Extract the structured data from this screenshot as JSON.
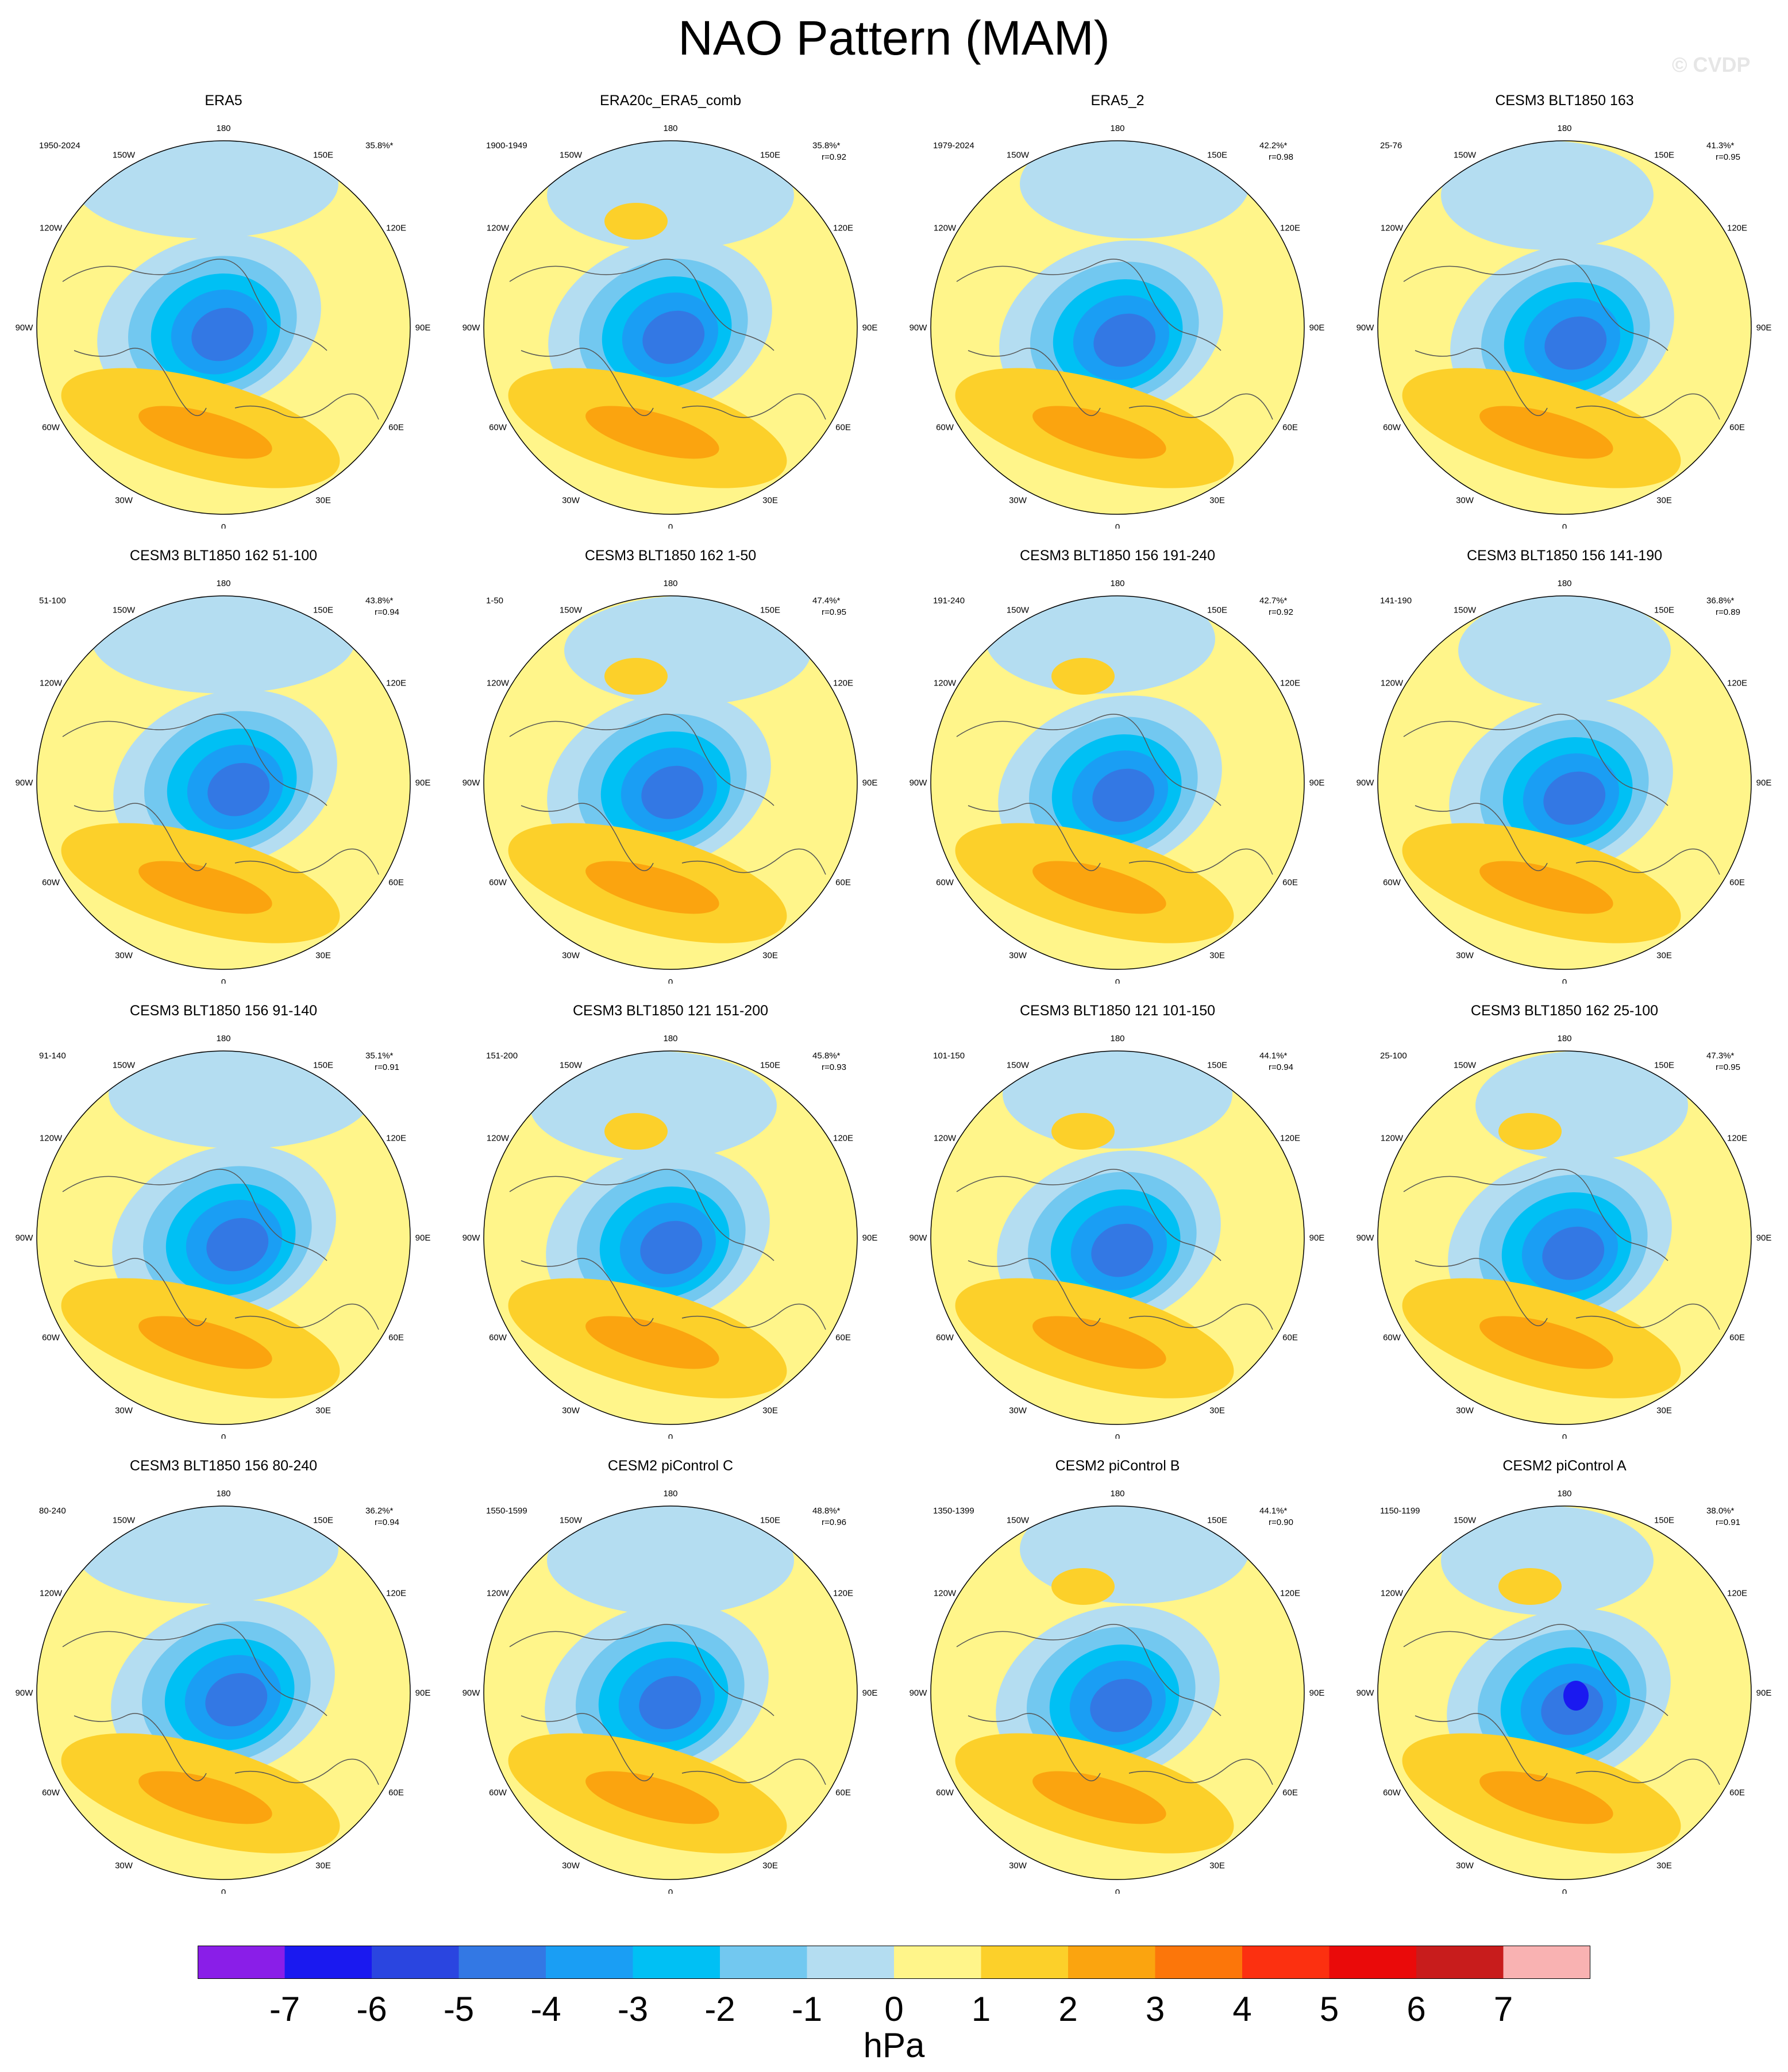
{
  "title": "NAO Pattern (MAM)",
  "watermark": "© CVDP",
  "chart_data": {
    "type": "polar-map-grid",
    "projection": "north-polar-stereographic",
    "variable": "sea level pressure EOF (NAO)",
    "unit": "hPa",
    "lon_labels": [
      "180",
      "150E",
      "120E",
      "90E",
      "60E",
      "30E",
      "0",
      "30W",
      "60W",
      "90W",
      "120W",
      "150W"
    ],
    "colorbar": {
      "ticks": [
        "-7",
        "-6",
        "-5",
        "-4",
        "-3",
        "-2",
        "-1",
        "0",
        "1",
        "2",
        "3",
        "4",
        "5",
        "6",
        "7"
      ],
      "colors": [
        "#8a1ee8",
        "#1a19f0",
        "#2a45e0",
        "#3378e4",
        "#1a9ef4",
        "#00c0f4",
        "#72c8f0",
        "#b4ddf1",
        "#fff58a",
        "#fcd02a",
        "#fba40f",
        "#fc760a",
        "#fc3010",
        "#ea0a0a",
        "#c81c1c",
        "#f9b2b2"
      ],
      "unit": "hPa"
    },
    "panels": [
      {
        "title": "ERA5",
        "period": "1950-2024",
        "pct": "35.8%*",
        "r": ""
      },
      {
        "title": "ERA20c_ERA5_comb",
        "period": "1900-1949",
        "pct": "35.8%*",
        "r": "r=0.92"
      },
      {
        "title": "ERA5_2",
        "period": "1979-2024",
        "pct": "42.2%*",
        "r": "r=0.98"
      },
      {
        "title": "CESM3 BLT1850 163",
        "period": "25-76",
        "pct": "41.3%*",
        "r": "r=0.95"
      },
      {
        "title": "CESM3 BLT1850 162 51-100",
        "period": "51-100",
        "pct": "43.8%*",
        "r": "r=0.94"
      },
      {
        "title": "CESM3 BLT1850 162 1-50",
        "period": "1-50",
        "pct": "47.4%*",
        "r": "r=0.95"
      },
      {
        "title": "CESM3 BLT1850 156 191-240",
        "period": "191-240",
        "pct": "42.7%*",
        "r": "r=0.92"
      },
      {
        "title": "CESM3 BLT1850 156 141-190",
        "period": "141-190",
        "pct": "36.8%*",
        "r": "r=0.89"
      },
      {
        "title": "CESM3 BLT1850 156 91-140",
        "period": "91-140",
        "pct": "35.1%*",
        "r": "r=0.91"
      },
      {
        "title": "CESM3 BLT1850 121 151-200",
        "period": "151-200",
        "pct": "45.8%*",
        "r": "r=0.93"
      },
      {
        "title": "CESM3 BLT1850 121 101-150",
        "period": "101-150",
        "pct": "44.1%*",
        "r": "r=0.94"
      },
      {
        "title": "CESM3 BLT1850 162 25-100",
        "period": "25-100",
        "pct": "47.3%*",
        "r": "r=0.95"
      },
      {
        "title": "CESM3 BLT1850 156 80-240",
        "period": "80-240",
        "pct": "36.2%*",
        "r": "r=0.94"
      },
      {
        "title": "CESM2 piControl C",
        "period": "1550-1599",
        "pct": "48.8%*",
        "r": "r=0.96"
      },
      {
        "title": "CESM2 piControl B",
        "period": "1350-1399",
        "pct": "44.1%*",
        "r": "r=0.90"
      },
      {
        "title": "CESM2 piControl A",
        "period": "1150-1199",
        "pct": "38.0%*",
        "r": "r=0.91"
      }
    ]
  }
}
